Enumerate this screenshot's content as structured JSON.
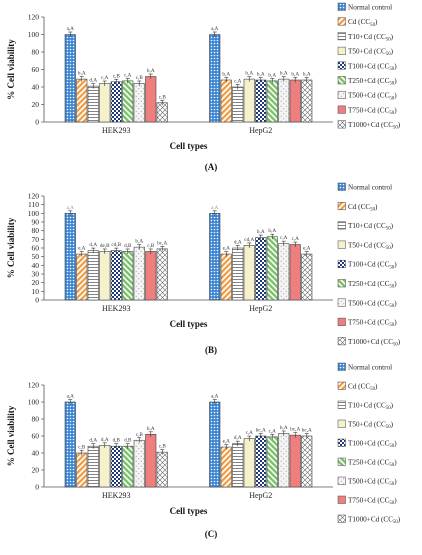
{
  "series_names": [
    "Normal control",
    "Cd (CC50)",
    "T10+Cd (CC50)",
    "T50+Cd (CC50)",
    "T100+Cd (CC50)",
    "T250+Cd (CC50)",
    "T500+Cd (CC50)",
    "T750+Cd (CC50)",
    "T1000+Cd (CC50)"
  ],
  "series_styles": [
    {
      "fill": "#3a86d4",
      "pattern": "dots"
    },
    {
      "fill": "#f39a3c",
      "pattern": "diag"
    },
    {
      "fill": "#ffffff",
      "pattern": "hlines"
    },
    {
      "fill": "#f5f1cc",
      "pattern": "none"
    },
    {
      "fill": "#1f3a78",
      "pattern": "checker"
    },
    {
      "fill": "#79c267",
      "pattern": "diagrev"
    },
    {
      "fill": "#f4f4f4",
      "pattern": "sparse"
    },
    {
      "fill": "#ef7f7f",
      "pattern": "none"
    },
    {
      "fill": "#ffffff",
      "pattern": "cross"
    }
  ],
  "chart_data": [
    {
      "type": "bar",
      "panel_label": "(A)",
      "categories": [
        "HEK293",
        "HepG2"
      ],
      "xlabel": "Cell types",
      "ylabel": "% Cell viability",
      "ylim": [
        0,
        120
      ],
      "yticks": [
        0,
        20,
        40,
        60,
        80,
        100,
        120
      ],
      "grid": false,
      "legend": "right",
      "series": [
        {
          "name": "Normal control",
          "values": [
            100,
            100
          ],
          "labels": [
            "a,A",
            "a,A"
          ]
        },
        {
          "name": "Cd (CC50)",
          "values": [
            49,
            48
          ],
          "labels": [
            "b,A",
            "b,A"
          ]
        },
        {
          "name": "T10+Cd (CC50)",
          "values": [
            41,
            40
          ],
          "labels": [
            "d,A",
            "c,A"
          ]
        },
        {
          "name": "T50+Cd (CC50)",
          "values": [
            44,
            49
          ],
          "labels": [
            "c,A",
            "b,A"
          ]
        },
        {
          "name": "T100+Cd (CC50)",
          "values": [
            46,
            48
          ],
          "labels": [
            "c,B",
            "b,A"
          ]
        },
        {
          "name": "T250+Cd (CC50)",
          "values": [
            47,
            47
          ],
          "labels": [
            "c,A",
            "b,A"
          ]
        },
        {
          "name": "T500+Cd (CC50)",
          "values": [
            44,
            49
          ],
          "labels": [
            "c,B",
            "b,A"
          ]
        },
        {
          "name": "T750+Cd (CC50)",
          "values": [
            52,
            48
          ],
          "labels": [
            "b,A",
            "b,A"
          ]
        },
        {
          "name": "T1000+Cd (CC50)",
          "values": [
            22,
            48
          ],
          "labels": [
            "c,B",
            "b,A"
          ]
        }
      ]
    },
    {
      "type": "bar",
      "panel_label": "(B)",
      "categories": [
        "HEK293",
        "HepG2"
      ],
      "xlabel": "Cell types",
      "ylabel": "% Cell viability",
      "ylim": [
        0,
        120
      ],
      "yticks": [
        0,
        10,
        20,
        30,
        40,
        50,
        60,
        70,
        80,
        90,
        100,
        110,
        120
      ],
      "grid": false,
      "legend": "right",
      "series": [
        {
          "name": "Normal control",
          "values": [
            100,
            100
          ],
          "labels": [
            "a,A",
            "a,A"
          ]
        },
        {
          "name": "Cd (CC50)",
          "values": [
            53,
            53
          ],
          "labels": [
            "e,A",
            "e,A"
          ]
        },
        {
          "name": "T10+Cd (CC50)",
          "values": [
            57,
            60
          ],
          "labels": [
            "d,A",
            "d,A"
          ]
        },
        {
          "name": "T50+Cd (CC50)",
          "values": [
            56,
            63
          ],
          "labels": [
            "de,B",
            "cd,A"
          ]
        },
        {
          "name": "T100+Cd (CC50)",
          "values": [
            57,
            72
          ],
          "labels": [
            "cd,B",
            "b,A"
          ]
        },
        {
          "name": "T250+Cd (CC50)",
          "values": [
            56,
            73
          ],
          "labels": [
            "d,B",
            "b,A"
          ]
        },
        {
          "name": "T500+Cd (CC50)",
          "values": [
            61,
            65
          ],
          "labels": [
            "b,A",
            "c,A"
          ]
        },
        {
          "name": "T750+Cd (CC50)",
          "values": [
            56,
            64
          ],
          "labels": [
            "c,B",
            "c,A"
          ]
        },
        {
          "name": "T1000+Cd (CC50)",
          "values": [
            59,
            53
          ],
          "labels": [
            "bc,A",
            "e,A"
          ]
        }
      ]
    },
    {
      "type": "bar",
      "panel_label": "(C)",
      "categories": [
        "HEK293",
        "HepG2"
      ],
      "xlabel": "Cell types",
      "ylabel": "% Cell viability",
      "ylim": [
        0,
        120
      ],
      "yticks": [
        0,
        20,
        40,
        60,
        80,
        100,
        120
      ],
      "grid": false,
      "legend": "right",
      "series": [
        {
          "name": "Normal control",
          "values": [
            100,
            100
          ],
          "labels": [
            "a,A",
            "a,A"
          ]
        },
        {
          "name": "Cd (CC50)",
          "values": [
            40,
            47
          ],
          "labels": [
            "c,B",
            "e,A"
          ]
        },
        {
          "name": "T10+Cd (CC50)",
          "values": [
            48,
            51
          ],
          "labels": [
            "d,A",
            "d,A"
          ]
        },
        {
          "name": "T50+Cd (CC50)",
          "values": [
            49,
            57
          ],
          "labels": [
            "d,A",
            "c,A"
          ]
        },
        {
          "name": "T100+Cd (CC50)",
          "values": [
            48,
            60
          ],
          "labels": [
            "d,B",
            "bc,A"
          ]
        },
        {
          "name": "T250+Cd (CC50)",
          "values": [
            48,
            59
          ],
          "labels": [
            "d,B",
            "c,A"
          ]
        },
        {
          "name": "T500+Cd (CC50)",
          "values": [
            55,
            63
          ],
          "labels": [
            "c,B",
            "b,A"
          ]
        },
        {
          "name": "T750+Cd (CC50)",
          "values": [
            62,
            61
          ],
          "labels": [
            "b,A",
            "bc,A"
          ]
        },
        {
          "name": "T1000+Cd (CC50)",
          "values": [
            41,
            60
          ],
          "labels": [
            "c,B",
            "bc,A"
          ]
        }
      ]
    }
  ]
}
